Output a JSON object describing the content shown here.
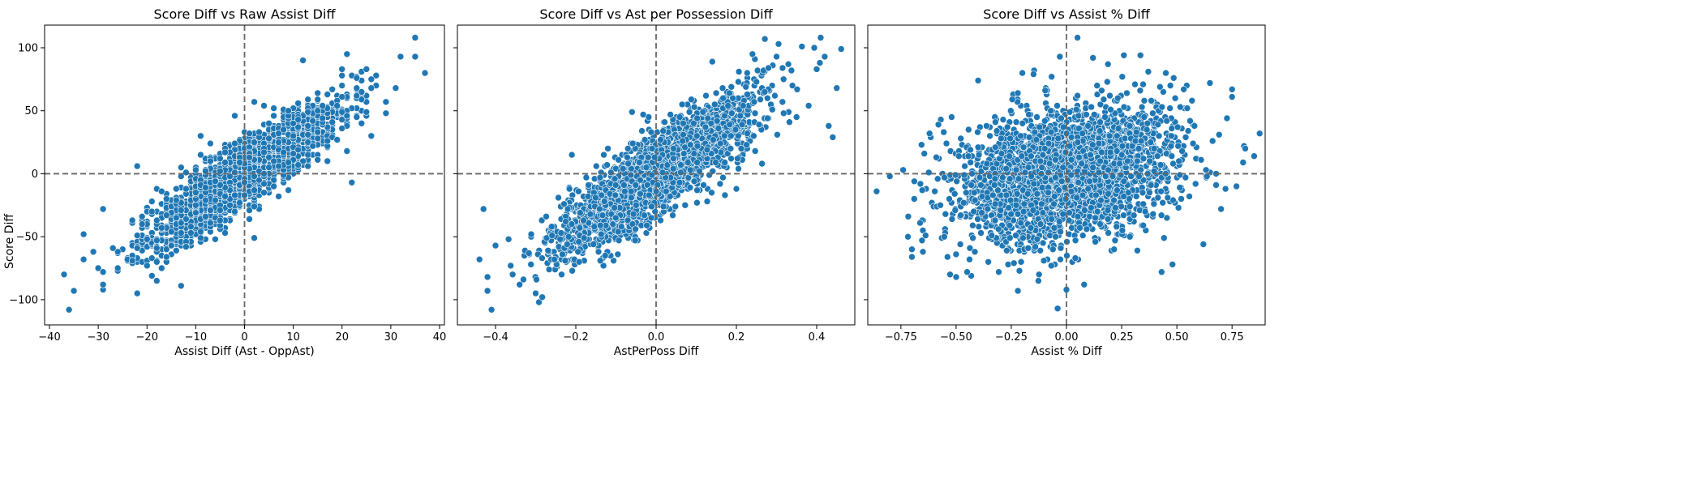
{
  "figure": {
    "ylabel": "Score Diff",
    "marker_color": "#1f77b4",
    "marker_edge": "#ffffff",
    "refline_color": "#666666"
  },
  "chart_data": [
    {
      "type": "scatter",
      "title": "Score Diff vs Raw Assist Diff",
      "xlabel": "Assist Diff (Ast - OppAst)",
      "ylabel": "Score Diff",
      "xlim": [
        -41,
        41
      ],
      "ylim": [
        -120,
        118
      ],
      "xticks": [
        -40,
        -30,
        -20,
        -10,
        0,
        10,
        20,
        30,
        40
      ],
      "xtick_labels": [
        "−40",
        "−30",
        "−20",
        "−10",
        "0",
        "10",
        "20",
        "30",
        "40"
      ],
      "yticks": [
        -100,
        -50,
        0,
        50,
        100
      ],
      "ytick_labels": [
        "−100",
        "−50",
        "0",
        "50",
        "100"
      ],
      "vline": 0,
      "hline": 0,
      "trend_slope": 2.6,
      "residual_sd": 13,
      "x_center": 0,
      "x_sd": 9.5,
      "discrete_x_step": 1,
      "discrete_y_step": 1,
      "samples": 2200,
      "points": [
        {
          "x": -37,
          "y": -80
        },
        {
          "x": -36,
          "y": -108
        },
        {
          "x": -35,
          "y": -93
        },
        {
          "x": -33,
          "y": -48
        },
        {
          "x": -33,
          "y": -68
        },
        {
          "x": -31,
          "y": -62
        },
        {
          "x": -29,
          "y": -28
        },
        {
          "x": -29,
          "y": -92
        },
        {
          "x": -29,
          "y": -88
        },
        {
          "x": -22,
          "y": -95
        },
        {
          "x": 35,
          "y": 108
        },
        {
          "x": 37,
          "y": 80
        },
        {
          "x": 35,
          "y": 93
        },
        {
          "x": 32,
          "y": 93
        },
        {
          "x": 31,
          "y": 68
        },
        {
          "x": 29,
          "y": 48
        },
        {
          "x": 21,
          "y": 95
        },
        {
          "x": 20,
          "y": 83
        },
        {
          "x": 12,
          "y": 90
        },
        {
          "x": 2,
          "y": 57
        },
        {
          "x": -2,
          "y": 46
        },
        {
          "x": -13,
          "y": -89
        },
        {
          "x": -22,
          "y": 6
        },
        {
          "x": 22,
          "y": -7
        },
        {
          "x": 2,
          "y": -51
        },
        {
          "x": 26,
          "y": 30
        },
        {
          "x": -18,
          "y": -85
        },
        {
          "x": -9,
          "y": 30
        }
      ]
    },
    {
      "type": "scatter",
      "title": "Score Diff vs Ast per Possession Diff",
      "xlabel": "AstPerPoss Diff",
      "ylabel": "",
      "xlim": [
        -0.495,
        0.495
      ],
      "ylim": [
        -120,
        118
      ],
      "xticks": [
        -0.4,
        -0.2,
        0.0,
        0.2,
        0.4
      ],
      "xtick_labels": [
        "−0.4",
        "−0.2",
        "0.0",
        "0.2",
        "0.4"
      ],
      "yticks": [
        -100,
        -50,
        0,
        50,
        100
      ],
      "ytick_labels": [
        "",
        "",
        "",
        "",
        ""
      ],
      "vline": 0,
      "hline": 0,
      "trend_slope": 215,
      "residual_sd": 15,
      "x_center": 0,
      "x_sd": 0.12,
      "discrete_x_step": 0,
      "discrete_y_step": 1,
      "samples": 2600,
      "points": [
        {
          "x": -0.44,
          "y": -68
        },
        {
          "x": -0.43,
          "y": -28
        },
        {
          "x": -0.42,
          "y": -93
        },
        {
          "x": -0.41,
          "y": -108
        },
        {
          "x": -0.42,
          "y": -82
        },
        {
          "x": -0.4,
          "y": -57
        },
        {
          "x": -0.34,
          "y": -88
        },
        {
          "x": -0.3,
          "y": -95
        },
        {
          "x": 0.41,
          "y": 108
        },
        {
          "x": 0.42,
          "y": 93
        },
        {
          "x": 0.44,
          "y": 29
        },
        {
          "x": 0.45,
          "y": 68
        },
        {
          "x": 0.43,
          "y": 38
        },
        {
          "x": 0.38,
          "y": 54
        },
        {
          "x": 0.3,
          "y": 93
        },
        {
          "x": 0.24,
          "y": 95
        },
        {
          "x": 0.14,
          "y": 89
        },
        {
          "x": -0.21,
          "y": 15
        },
        {
          "x": 0.2,
          "y": -12
        },
        {
          "x": -0.06,
          "y": 49
        }
      ]
    },
    {
      "type": "scatter",
      "title": "Score Diff vs Assist % Diff",
      "xlabel": "Assist % Diff",
      "ylabel": "",
      "xlim": [
        -0.9,
        0.9
      ],
      "ylim": [
        -120,
        118
      ],
      "xticks": [
        -0.75,
        -0.5,
        -0.25,
        0.0,
        0.25,
        0.5,
        0.75
      ],
      "xtick_labels": [
        "−0.75",
        "−0.50",
        "−0.25",
        "0.00",
        "0.25",
        "0.50",
        "0.75"
      ],
      "yticks": [
        -100,
        -50,
        0,
        50,
        100
      ],
      "ytick_labels": [
        "",
        "",
        "",
        "",
        ""
      ],
      "vline": 0,
      "hline": 0,
      "trend_slope": 32,
      "residual_sd": 26,
      "x_center": 0.0,
      "x_sd": 0.24,
      "discrete_x_step": 0,
      "discrete_y_step": 1,
      "samples": 2800,
      "points": [
        {
          "x": -0.86,
          "y": -14
        },
        {
          "x": -0.8,
          "y": -2
        },
        {
          "x": -0.74,
          "y": 3
        },
        {
          "x": -0.7,
          "y": -60
        },
        {
          "x": -0.7,
          "y": -66
        },
        {
          "x": -0.62,
          "y": 32
        },
        {
          "x": -0.45,
          "y": -78
        },
        {
          "x": -0.22,
          "y": -93
        },
        {
          "x": -0.04,
          "y": -107
        },
        {
          "x": 0.0,
          "y": -92
        },
        {
          "x": 0.08,
          "y": -88
        },
        {
          "x": 0.05,
          "y": 108
        },
        {
          "x": 0.12,
          "y": 92
        },
        {
          "x": 0.26,
          "y": 94
        },
        {
          "x": -0.2,
          "y": 80
        },
        {
          "x": -0.03,
          "y": 93
        },
        {
          "x": -0.4,
          "y": 74
        },
        {
          "x": 0.85,
          "y": 14
        },
        {
          "x": 0.81,
          "y": 20
        },
        {
          "x": 0.75,
          "y": 67
        },
        {
          "x": 0.75,
          "y": 61
        },
        {
          "x": 0.77,
          "y": -10
        },
        {
          "x": 0.65,
          "y": 72
        },
        {
          "x": 0.48,
          "y": -72
        },
        {
          "x": 0.62,
          "y": -56
        },
        {
          "x": 0.7,
          "y": -28
        },
        {
          "x": -0.52,
          "y": 45
        },
        {
          "x": 0.45,
          "y": 80
        }
      ]
    }
  ]
}
